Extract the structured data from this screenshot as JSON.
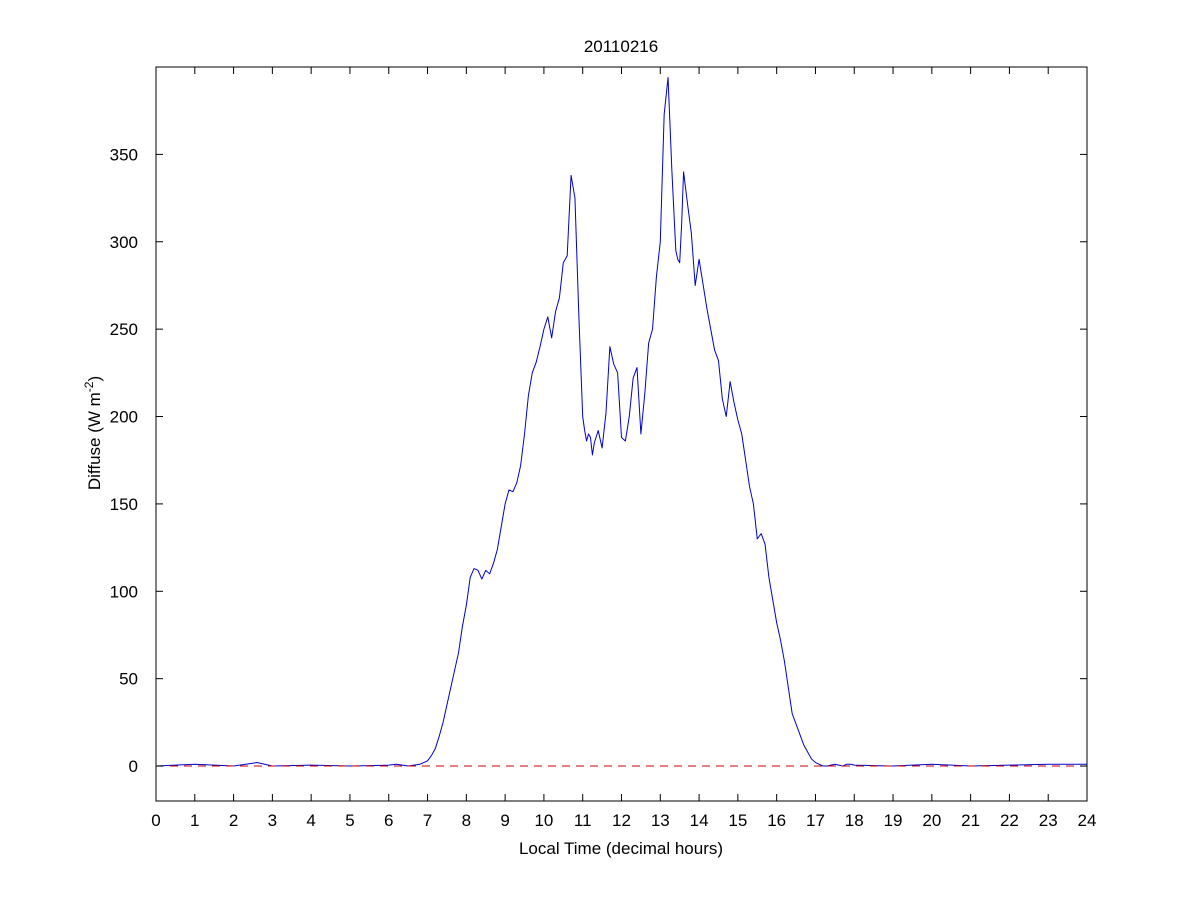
{
  "figure": {
    "background": "#ffffff",
    "axes_color": "#000000"
  },
  "chart_data": {
    "type": "line",
    "title": "20110216",
    "xlabel": "Local Time (decimal hours)",
    "ylabel": {
      "prefix": "Diffuse (W m",
      "superscript": "-2",
      "suffix": ")"
    },
    "xlim": [
      0,
      24
    ],
    "ylim": [
      -20,
      400
    ],
    "x_ticks": [
      0,
      1,
      2,
      3,
      4,
      5,
      6,
      7,
      8,
      9,
      10,
      11,
      12,
      13,
      14,
      15,
      16,
      17,
      18,
      19,
      20,
      21,
      22,
      23,
      24
    ],
    "x_tick_labels": [
      "0",
      "1",
      "2",
      "3",
      "4",
      "5",
      "6",
      "7",
      "8",
      "9",
      "10",
      "11",
      "12",
      "13",
      "14",
      "15",
      "16",
      "17",
      "18",
      "19",
      "20",
      "21",
      "22",
      "23",
      "24"
    ],
    "y_ticks": [
      0,
      50,
      100,
      150,
      200,
      250,
      300,
      350
    ],
    "y_tick_labels": [
      "0",
      "50",
      "100",
      "150",
      "200",
      "250",
      "300",
      "350"
    ],
    "grid": false,
    "legend": "none",
    "series": [
      {
        "color": "#0000cc",
        "style": "solid",
        "x": [
          0,
          1.0,
          2.0,
          2.6,
          3.0,
          4.0,
          5.0,
          6.0,
          6.2,
          6.5,
          6.8,
          7.0,
          7.1,
          7.2,
          7.3,
          7.4,
          7.5,
          7.6,
          7.7,
          7.8,
          7.9,
          8.0,
          8.1,
          8.2,
          8.3,
          8.4,
          8.5,
          8.6,
          8.7,
          8.8,
          8.9,
          9.0,
          9.1,
          9.2,
          9.3,
          9.4,
          9.5,
          9.6,
          9.7,
          9.8,
          9.9,
          10.0,
          10.1,
          10.2,
          10.3,
          10.4,
          10.5,
          10.6,
          10.7,
          10.8,
          10.9,
          11.0,
          11.05,
          11.1,
          11.15,
          11.2,
          11.25,
          11.3,
          11.4,
          11.5,
          11.6,
          11.7,
          11.8,
          11.9,
          12.0,
          12.1,
          12.2,
          12.3,
          12.4,
          12.5,
          12.6,
          12.7,
          12.8,
          12.9,
          13.0,
          13.1,
          13.2,
          13.3,
          13.4,
          13.45,
          13.5,
          13.55,
          13.6,
          13.7,
          13.8,
          13.9,
          14.0,
          14.1,
          14.2,
          14.3,
          14.4,
          14.5,
          14.6,
          14.7,
          14.8,
          14.9,
          15.0,
          15.1,
          15.2,
          15.3,
          15.4,
          15.5,
          15.6,
          15.7,
          15.8,
          15.9,
          16.0,
          16.1,
          16.2,
          16.3,
          16.4,
          16.5,
          16.6,
          16.7,
          16.8,
          16.9,
          17.0,
          17.1,
          17.2,
          17.3,
          17.4,
          17.5,
          17.6,
          17.7,
          17.8,
          17.9,
          18.0,
          19.0,
          20.0,
          21.0,
          22.0,
          23.0,
          24.0
        ],
        "y": [
          0,
          1,
          0,
          2,
          0,
          0.5,
          0,
          0.5,
          1,
          0,
          1,
          3,
          6,
          10,
          17,
          25,
          35,
          45,
          55,
          65,
          80,
          92,
          108,
          113,
          112,
          107,
          112,
          110,
          116,
          124,
          137,
          150,
          158,
          157,
          162,
          172,
          190,
          212,
          225,
          231,
          240,
          250,
          257,
          245,
          260,
          268,
          288,
          292,
          338,
          325,
          258,
          200,
          192,
          186,
          190,
          188,
          178,
          185,
          192,
          182,
          202,
          240,
          230,
          225,
          188,
          186,
          200,
          222,
          228,
          190,
          213,
          242,
          250,
          280,
          300,
          373,
          394,
          340,
          295,
          290,
          288,
          310,
          340,
          322,
          305,
          275,
          290,
          276,
          262,
          250,
          238,
          232,
          210,
          200,
          220,
          208,
          198,
          190,
          175,
          160,
          150,
          130,
          133,
          127,
          108,
          95,
          82,
          72,
          60,
          45,
          30,
          24,
          18,
          12,
          8,
          4,
          2,
          1,
          0,
          0,
          0.5,
          1,
          0.5,
          0,
          1,
          1,
          0.5,
          0,
          1,
          0,
          0.5,
          1,
          1
        ]
      },
      {
        "color": "#cc0000",
        "style": "dashed",
        "x": [
          0,
          24
        ],
        "y": [
          0,
          0
        ]
      }
    ]
  }
}
